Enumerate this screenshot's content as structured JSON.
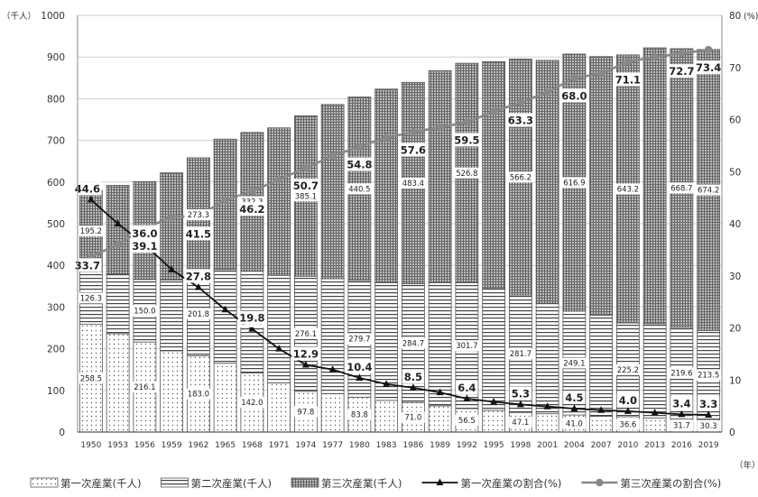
{
  "chart_data": {
    "type": "bar",
    "stacked": true,
    "title": "",
    "left_unit": "（千人）",
    "right_unit": "(%)",
    "x_unit": "（年）",
    "left_ylim": [
      0,
      1000
    ],
    "left_yticks": [
      0,
      100,
      200,
      300,
      400,
      500,
      600,
      700,
      800,
      900,
      1000
    ],
    "right_ylim": [
      0,
      80
    ],
    "right_yticks": [
      0,
      10,
      20,
      30,
      40,
      50,
      60,
      70,
      80
    ],
    "grid": true,
    "legend_position": "bottom",
    "categories": [
      "1950",
      "1953",
      "1956",
      "1959",
      "1962",
      "1965",
      "1968",
      "1971",
      "1974",
      "1977",
      "1980",
      "1983",
      "1986",
      "1989",
      "1992",
      "1995",
      "1998",
      "2001",
      "2004",
      "2007",
      "2010",
      "2013",
      "2016",
      "2019"
    ],
    "series": [
      {
        "name": "第一次産業(千人)",
        "kind": "bar",
        "pattern": "dots",
        "values": [
          258.5,
          236,
          216.1,
          195,
          183.0,
          165,
          142.0,
          118,
          97.8,
          92,
          83.8,
          76,
          71.0,
          63,
          56.5,
          52,
          47.1,
          44,
          41.0,
          38,
          36.6,
          34,
          31.7,
          30.3
        ],
        "labels": {
          "0": "258.5",
          "2": "216.1",
          "4": "183.0",
          "6": "142.0",
          "8": "97.8",
          "10": "83.8",
          "12": "71.0",
          "14": "56.5",
          "16": "47.1",
          "18": "41.0",
          "20": "36.6",
          "22": "31.7",
          "23": "30.3"
        }
      },
      {
        "name": "第二次産業(千人)",
        "kind": "bar",
        "pattern": "hlines",
        "values": [
          126.3,
          143,
          150.0,
          170,
          201.8,
          225,
          244.6,
          258,
          276.1,
          276,
          279.7,
          282,
          284.7,
          295,
          301.7,
          292,
          281.7,
          265,
          249.1,
          242,
          225.2,
          226,
          219.6,
          213.5
        ],
        "labels": {
          "0": "126.3",
          "2": "150.0",
          "4": "201.8",
          "6": "244.6",
          "8": "276.1",
          "10": "279.7",
          "12": "284.7",
          "14": "301.7",
          "16": "281.7",
          "18": "249.1",
          "20": "225.2",
          "22": "219.6",
          "23": "213.5"
        }
      },
      {
        "name": "第三次産業(千人)",
        "kind": "bar",
        "pattern": "crosshatch",
        "values": [
          195.2,
          213,
          234.9,
          257,
          273.3,
          313,
          332.3,
          354,
          385.1,
          418,
          440.5,
          465,
          483.4,
          509,
          526.8,
          545,
          566.2,
          583,
          616.9,
          621,
          643.2,
          662,
          668.7,
          674.2
        ],
        "labels": {
          "0": "195.2",
          "2": "234.9",
          "4": "273.3",
          "6": "332.3",
          "8": "385.1",
          "10": "440.5",
          "12": "483.4",
          "14": "526.8",
          "16": "566.2",
          "18": "616.9",
          "20": "643.2",
          "22": "668.7",
          "23": "674.2"
        }
      },
      {
        "name": "第一次産業の割合(%)",
        "kind": "line",
        "axis": "right",
        "marker": "triangle",
        "color": "#111111",
        "values": [
          44.6,
          40.0,
          36.0,
          31.2,
          27.8,
          23.5,
          19.8,
          16.0,
          12.9,
          12.0,
          10.4,
          9.2,
          8.5,
          7.6,
          6.4,
          5.8,
          5.3,
          4.9,
          4.5,
          4.2,
          4.0,
          3.7,
          3.4,
          3.3
        ],
        "labels": {
          "0": "44.6",
          "2": "36.0",
          "4": "27.8",
          "6": "19.8",
          "8": "12.9",
          "10": "10.4",
          "12": "8.5",
          "14": "6.4",
          "16": "5.3",
          "18": "4.5",
          "20": "4.0",
          "22": "3.4",
          "23": "3.3"
        }
      },
      {
        "name": "第三次産業の割合(%)",
        "kind": "line",
        "axis": "right",
        "marker": "circle",
        "color": "#888888",
        "values": [
          33.7,
          36.0,
          39.1,
          41.3,
          41.5,
          44.5,
          46.2,
          48.5,
          50.7,
          53.0,
          54.8,
          56.5,
          57.6,
          58.5,
          59.5,
          61.5,
          63.3,
          65.2,
          68.0,
          68.8,
          71.1,
          72.0,
          72.7,
          73.4
        ],
        "labels": {
          "0": "33.7",
          "2": "39.1",
          "4": "41.5",
          "6": "46.2",
          "8": "50.7",
          "10": "54.8",
          "12": "57.6",
          "14": "59.5",
          "16": "63.3",
          "18": "68.0",
          "20": "71.1",
          "22": "72.7",
          "23": "73.4"
        }
      }
    ]
  }
}
